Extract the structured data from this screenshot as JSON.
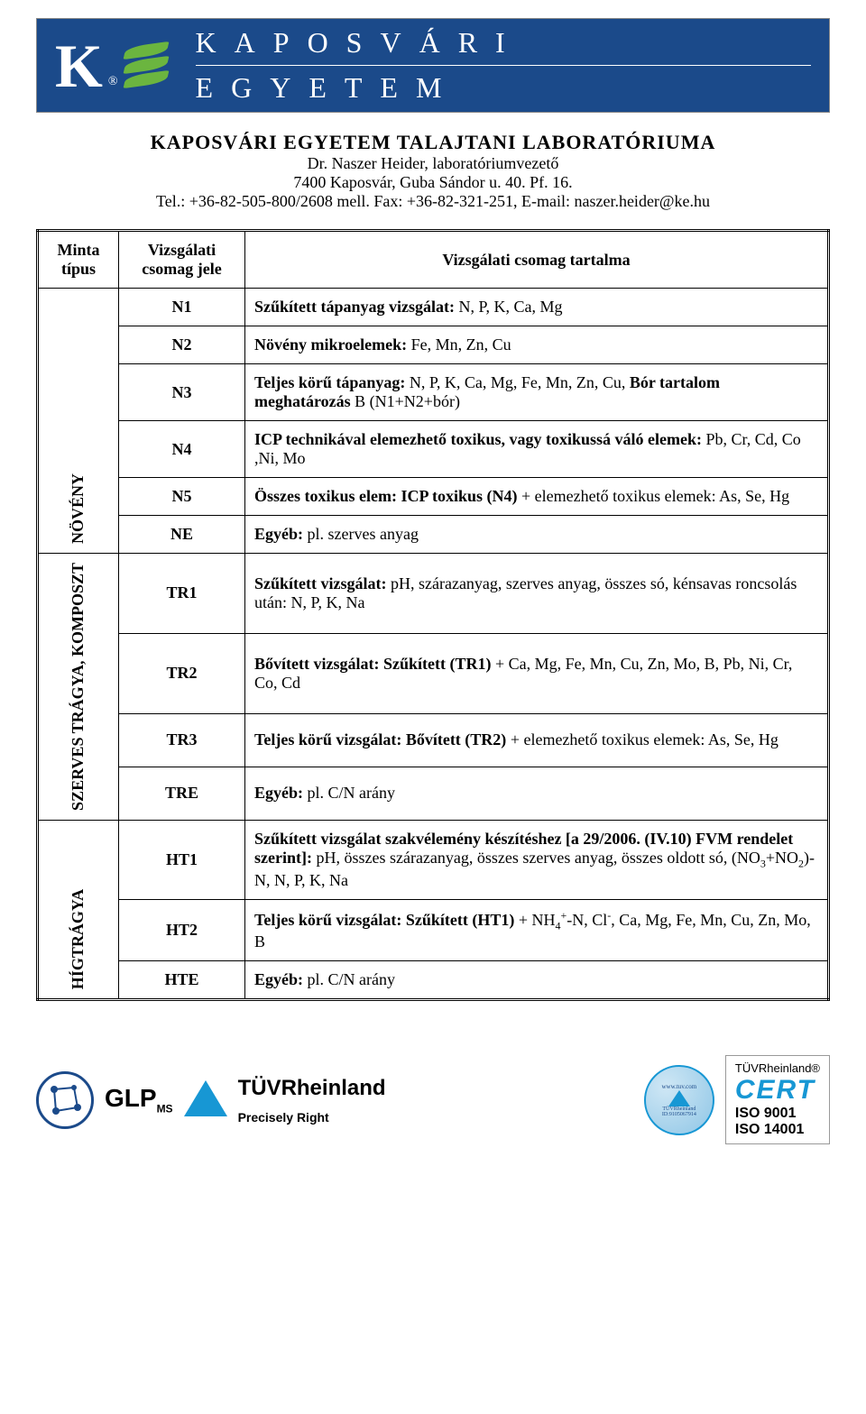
{
  "banner": {
    "line1": "KAPOSVÁRI",
    "line2": "EGYETEM"
  },
  "header": {
    "title": "KAPOSVÁRI EGYETEM TALAJTANI LABORATÓRIUMA",
    "person": "Dr. Naszer Heider, laboratóriumvezető",
    "address": "7400 Kaposvár, Guba Sándor u. 40. Pf. 16.",
    "contact": "Tel.: +36-82-505-800/2608 mell. Fax: +36-82-321-251, E-mail: naszer.heider@ke.hu"
  },
  "thead": {
    "c1": "Minta típus",
    "c2": "Vizsgálati csomag jele",
    "c3": "Vizsgálati csomag tartalma"
  },
  "groups": [
    {
      "label": "NÖVÉNY",
      "rows": [
        {
          "code": "N1",
          "html": "<b>Szűkített tápanyag vizsgálat:</b> N, P, K, Ca, Mg"
        },
        {
          "code": "N2",
          "html": "<b>Növény mikroelemek:</b> Fe, Mn, Zn, Cu"
        },
        {
          "code": "N3",
          "html": "<b>Teljes körű tápanyag:</b> N, P, K, Ca, Mg, Fe, Mn, Zn, Cu, <b>Bór tartalom meghatározás</b> B (N1+N2+bór)"
        },
        {
          "code": "N4",
          "html": "<b>ICP technikával elemezhető toxikus, vagy toxikussá váló elemek:</b> Pb, Cr, Cd, Co ,Ni, Mo"
        },
        {
          "code": "N5",
          "html": "<b>Összes toxikus elem: ICP toxikus (N4)</b> + elemezhető toxikus elemek: As, Se, Hg"
        },
        {
          "code": "NE",
          "html": "<b>Egyéb:</b> pl. szerves anyag"
        }
      ]
    },
    {
      "label": "SZERVES TRÁGYA, KOMPOSZT",
      "rows": [
        {
          "code": "TR1",
          "html": "<b>Szűkített vizsgálat:</b> pH, szárazanyag, szerves anyag, összes só, kénsavas roncsolás után: N, P, K, Na"
        },
        {
          "code": "TR2",
          "html": "<b>Bővített vizsgálat: Szűkített (TR1)</b> + Ca, Mg, Fe, Mn, Cu, Zn, Mo, B, Pb, Ni, Cr, Co, Cd"
        },
        {
          "code": "TR3",
          "html": "<b>Teljes körű vizsgálat: Bővített (TR2)</b> + elemezhető toxikus elemek: As, Se, Hg"
        },
        {
          "code": "TRE",
          "html": "<b>Egyéb:</b> pl. C/N arány"
        }
      ]
    },
    {
      "label": "HÍGTRÁGYA",
      "rows": [
        {
          "code": "HT1",
          "html": "<b>Szűkített vizsgálat szakvélemény készítéshez [a 29/2006. (IV.10) FVM rendelet szerint]:</b> pH, összes szárazanyag, összes szerves anyag, összes oldott só, (NO<sub>3</sub>+NO<sub>2</sub>)-N, N, P, K, Na"
        },
        {
          "code": "HT2",
          "html": "<b>Teljes körű vizsgálat: Szűkített (HT1)</b> + NH<sub>4</sub><sup>+</sup>-N, Cl<sup>-</sup>, Ca, Mg, Fe, Mn, Cu, Zn, Mo, B"
        },
        {
          "code": "HTE",
          "html": "<b>Egyéb:</b> pl. C/N arány"
        }
      ]
    }
  ],
  "footer": {
    "glp": "GLP",
    "tuv": "TÜVRheinland",
    "tag": "Precisely Right",
    "stamp_top": "www.tuv.com",
    "stamp_mid": "TÜVRheinland",
    "stamp_id": "ID:9105067914",
    "tuv_r": "TÜVRheinland®",
    "cert": "CERT",
    "iso1": "ISO 9001",
    "iso2": "ISO 14001"
  }
}
